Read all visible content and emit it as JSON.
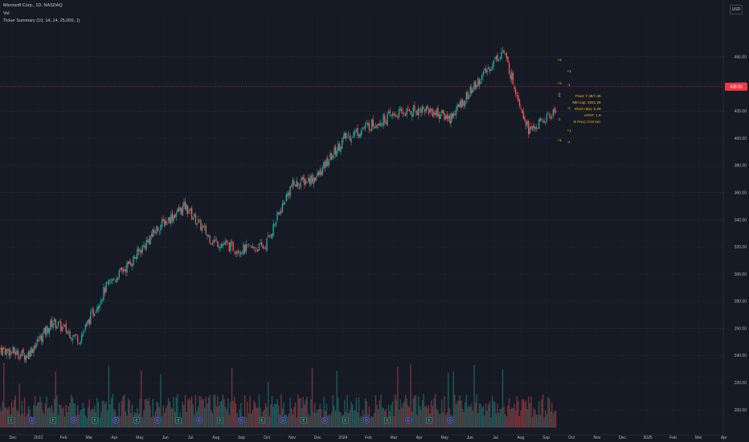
{
  "legend": {
    "symbol": "Microsoft Corp., 1D, NASDAQ",
    "vol": "Vol",
    "indicator": "Ticker Summary (10, 14, 14, 25,000, 1)"
  },
  "currency": "USD",
  "colors": {
    "up": "#26a69a",
    "down": "#ef5350",
    "annotation": "#f0b90b",
    "price_tag": "#f23645",
    "background": "#161a25"
  },
  "chart_data": {
    "type": "candlestick",
    "symbol": "MSFT",
    "interval": "1D",
    "ylim": [
      187,
      490
    ],
    "y_ticks": [
      "460.00",
      "440.00",
      "420.00",
      "400.00",
      "380.00",
      "360.00",
      "340.00",
      "320.00",
      "300.00",
      "280.00",
      "260.00",
      "240.00",
      "220.00",
      "200.00"
    ],
    "x_ticks": [
      "Dec",
      "2023",
      "Feb",
      "Mar",
      "Apr",
      "May",
      "Jun",
      "Jul",
      "Aug",
      "Sep",
      "Oct",
      "Nov",
      "Dec",
      "2024",
      "Feb",
      "Mar",
      "Apr",
      "May",
      "Jun",
      "Jul",
      "Aug",
      "Sep",
      "Oct",
      "Nov",
      "Dec",
      "2025",
      "Feb",
      "Mar",
      "Apr"
    ],
    "last_price": "438.00",
    "approx_close_path": [
      {
        "x": "Dec",
        "y": 245
      },
      {
        "x": "2023",
        "y": 240
      },
      {
        "x": "Feb",
        "y": 265
      },
      {
        "x": "Mar",
        "y": 252
      },
      {
        "x": "Apr",
        "y": 290
      },
      {
        "x": "May",
        "y": 310
      },
      {
        "x": "Jun",
        "y": 335
      },
      {
        "x": "Jul",
        "y": 350
      },
      {
        "x": "Aug",
        "y": 325
      },
      {
        "x": "Sep",
        "y": 318
      },
      {
        "x": "Oct",
        "y": 320
      },
      {
        "x": "Nov",
        "y": 365
      },
      {
        "x": "Dec",
        "y": 372
      },
      {
        "x": "2024",
        "y": 400
      },
      {
        "x": "Feb",
        "y": 410
      },
      {
        "x": "Mar",
        "y": 418
      },
      {
        "x": "Apr",
        "y": 422
      },
      {
        "x": "May",
        "y": 415
      },
      {
        "x": "Jun",
        "y": 440
      },
      {
        "x": "Jul",
        "y": 465
      },
      {
        "x": "Aug",
        "y": 405
      },
      {
        "x": "Sep",
        "y": 420
      }
    ],
    "annotations": {
      "labels": [
        "+2",
        "+1",
        "+2",
        "-1",
        "-1",
        "-2",
        "-1",
        "+1",
        "+1",
        "-1",
        "-1"
      ],
      "summary": [
        "Float: 7.38/7.48",
        "Mkt cap: 3261.28",
        "Short ratio: 0.29",
        "ATRP: 1.9",
        "B Freq: 0.04 sec"
      ]
    },
    "event_badges": [
      "E",
      "D",
      "E",
      "D",
      "E",
      "D",
      "E",
      "D",
      "E",
      "D",
      "E",
      "D",
      "E",
      "D",
      "E",
      "D",
      "E",
      "D",
      "E",
      "D",
      "E",
      "D"
    ]
  }
}
